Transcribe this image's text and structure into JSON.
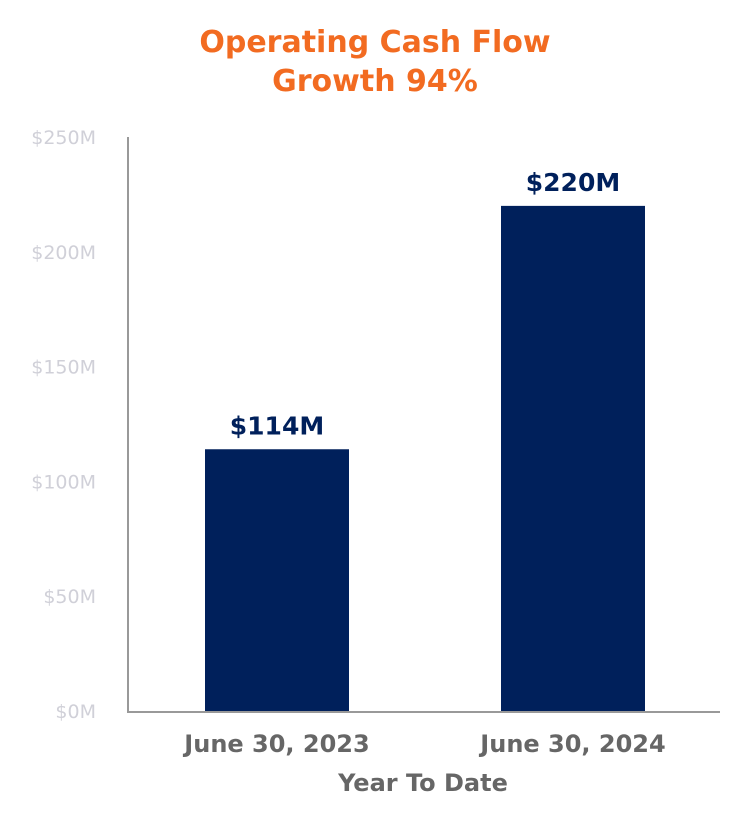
{
  "chart_data": {
    "type": "bar",
    "title": [
      "Operating Cash Flow",
      "Growth 94%"
    ],
    "xlabel": "Year To Date",
    "ylabel": "",
    "categories": [
      "June 30, 2023",
      "June 30, 2024"
    ],
    "values": [
      114,
      220
    ],
    "data_labels": [
      "$114M",
      "$220M"
    ],
    "yticks": [
      0,
      50,
      100,
      150,
      200,
      250
    ],
    "ytick_labels": [
      "$0M",
      "$50M",
      "$100M",
      "$150M",
      "$200M",
      "$250M"
    ],
    "ylim": [
      0,
      250
    ],
    "grid": false,
    "legend": "none",
    "colors": {
      "bar": "#00205b",
      "title": "#f26b21",
      "tick": "#d0d0d8",
      "axis_label": "#666666",
      "axis_line": "#999999"
    }
  }
}
